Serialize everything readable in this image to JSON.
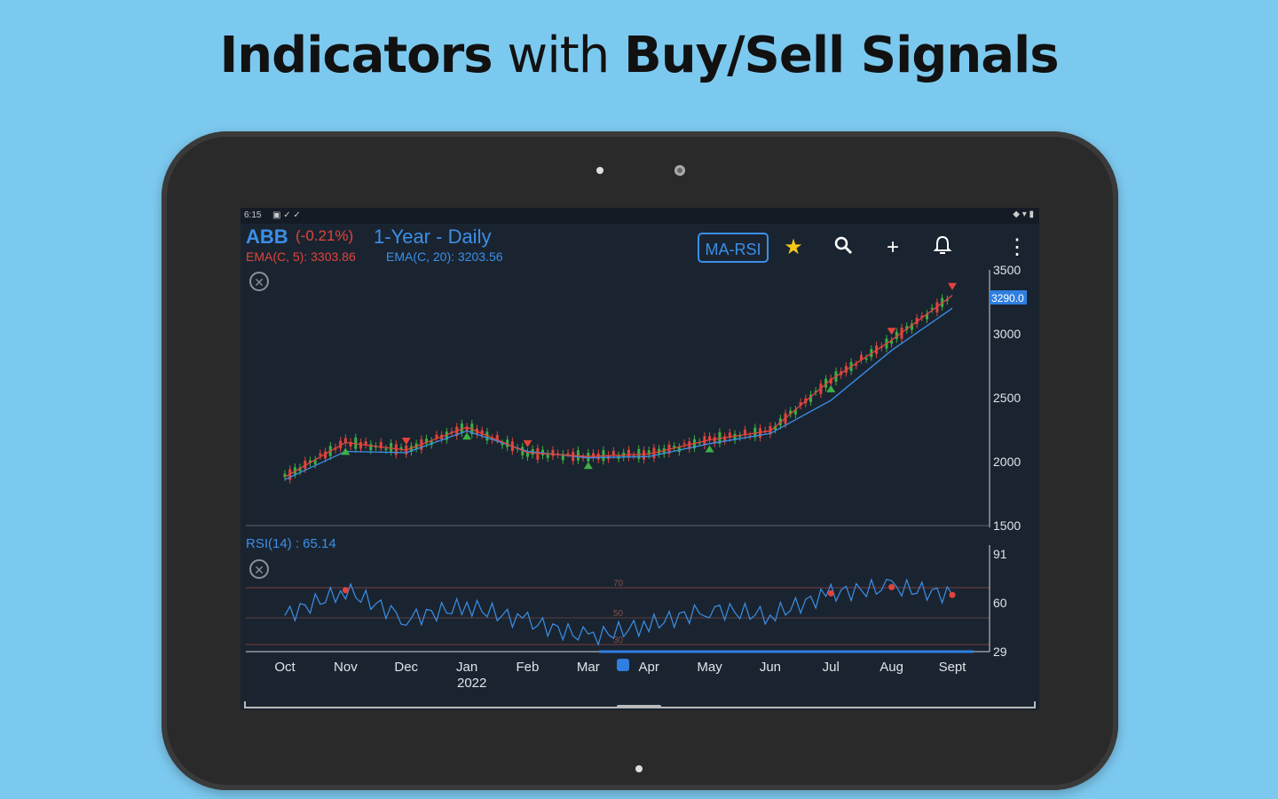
{
  "headline": {
    "part1": "Indicators",
    "part2": " with ",
    "part3": "Buy/Sell Signals"
  },
  "status_bar": {
    "time": "6:15",
    "icons_left": "▣ ✓ ✓",
    "icons_right": "◆ ▾ ▮"
  },
  "header": {
    "symbol": "ABB",
    "change": "(-0.21%)",
    "period": "1-Year - Daily",
    "ema5": "EMA(C, 5): 3303.86",
    "ema20": "EMA(C, 20): 3203.56",
    "indicator_button": "MA-RSI"
  },
  "toolbar_icons": [
    "star-icon",
    "search-icon",
    "plus-icon",
    "bell-icon",
    "more-vert-icon"
  ],
  "rsi_panel": {
    "label": "RSI(14) : 65.14",
    "level_high": "70",
    "level_mid": "50",
    "level_low": "30"
  },
  "price_axis": {
    "ticks": [
      "3500",
      "3000",
      "2500",
      "2000",
      "1500"
    ],
    "current_price": "3290.0"
  },
  "rsi_axis": {
    "ticks": [
      "91",
      "60",
      "29"
    ]
  },
  "x_axis": {
    "months": [
      "Oct",
      "Nov",
      "Dec",
      "Jan",
      "Feb",
      "Mar",
      "Apr",
      "May",
      "Jun",
      "Jul",
      "Aug",
      "Sept"
    ],
    "year_label": "2022"
  },
  "colors": {
    "background": "#7cc9ef",
    "screen": "#1a2430",
    "accent": "#3b8fe8",
    "down": "#e0443c",
    "up": "#3cb043"
  },
  "chart_data": [
    {
      "type": "line",
      "title": "ABB 1-Year - Daily",
      "xlabel": "",
      "ylabel": "",
      "ylim": [
        1500,
        3500
      ],
      "x": [
        "Oct",
        "Nov",
        "Dec",
        "Jan",
        "Feb",
        "Mar",
        "Apr",
        "May",
        "Jun",
        "Jul",
        "Aug",
        "Sept"
      ],
      "series": [
        {
          "name": "EMA(C, 5)",
          "values": [
            1880,
            2150,
            2090,
            2270,
            2070,
            2040,
            2060,
            2170,
            2240,
            2640,
            2950,
            3300
          ]
        },
        {
          "name": "EMA(C, 20)",
          "values": [
            1860,
            2080,
            2070,
            2240,
            2080,
            2030,
            2040,
            2140,
            2220,
            2480,
            2870,
            3200
          ]
        }
      ],
      "current_value": 3290.0
    },
    {
      "type": "line",
      "title": "RSI(14) : 65.14",
      "ylim": [
        29,
        91
      ],
      "x": [
        "Oct",
        "Nov",
        "Dec",
        "Jan",
        "Feb",
        "Mar",
        "Apr",
        "May",
        "Jun",
        "Jul",
        "Aug",
        "Sept"
      ],
      "series": [
        {
          "name": "RSI(14)",
          "values": [
            52,
            68,
            50,
            58,
            48,
            38,
            46,
            56,
            52,
            66,
            70,
            65
          ]
        }
      ],
      "reference_levels": [
        70,
        50,
        30
      ]
    }
  ]
}
